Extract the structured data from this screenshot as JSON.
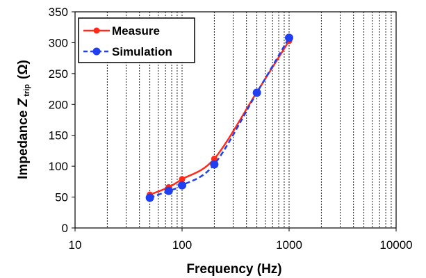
{
  "chart_data": {
    "type": "line",
    "xscale": "log",
    "xlim": [
      10,
      10000
    ],
    "ylim": [
      0,
      350
    ],
    "x_ticks": [
      "10",
      "100",
      "1000",
      "10000"
    ],
    "y_ticks": [
      "0",
      "50",
      "100",
      "150",
      "200",
      "250",
      "300",
      "350"
    ],
    "xlabel": "Frequency (Hz)",
    "ylabel_main": "Impedance ",
    "ylabel_var": "Z",
    "ylabel_sub": "trip",
    "ylabel_unit": "(Ω)",
    "grid": "vertical dotted (log minor)",
    "legend_position": "top-left",
    "series": [
      {
        "name": "Measure",
        "color": "#ff2a1a",
        "line": "solid",
        "x": [
          50,
          75,
          100,
          200,
          500,
          1000
        ],
        "y": [
          54,
          66,
          79,
          112,
          220,
          303
        ]
      },
      {
        "name": "Simulation",
        "color": "#1f3ff0",
        "line": "dashed",
        "x": [
          50,
          75,
          100,
          200,
          500,
          1000
        ],
        "y": [
          49,
          60,
          69,
          103,
          219,
          308
        ]
      }
    ]
  }
}
